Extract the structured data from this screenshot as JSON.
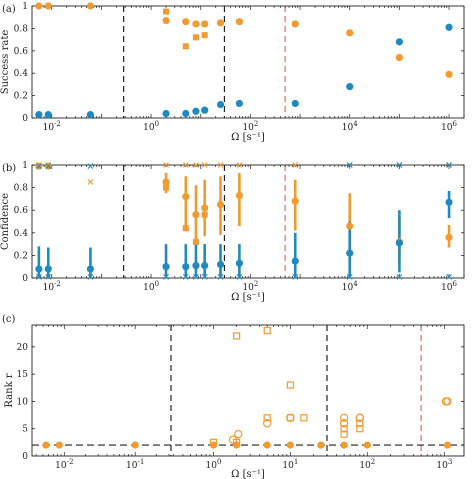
{
  "chart_data": [
    {
      "panel": "(a)",
      "type": "scatter",
      "xscale": "log",
      "xlim": [
        0.004,
        2000000
      ],
      "ylim": [
        0,
        1
      ],
      "ylabel": "Success rate",
      "xlabel": "Ω [s⁻¹]",
      "xticks": [
        {
          "v": 0.01,
          "b": "10",
          "e": "-2"
        },
        {
          "v": 1,
          "b": "10",
          "e": "0"
        },
        {
          "v": 100,
          "b": "10",
          "e": "2"
        },
        {
          "v": 10000,
          "b": "10",
          "e": "4"
        },
        {
          "v": 1000000,
          "b": "10",
          "e": "6"
        }
      ],
      "yticks": [
        "0",
        "0.2",
        "0.4",
        "0.6",
        "0.8",
        "1"
      ],
      "vlines": [
        {
          "x": 0.28,
          "color": "#222222"
        },
        {
          "x": 30,
          "color": "#222222"
        },
        {
          "x": 500,
          "color": "#e07060"
        }
      ],
      "series": [
        {
          "color": "#f39a2e",
          "marker": "circle",
          "x": [
            0.0055,
            0.0085,
            0.06,
            2,
            5,
            8,
            12,
            25,
            60,
            800,
            10000,
            100000,
            1000000
          ],
          "y": [
            1.0,
            1.0,
            1.0,
            0.87,
            0.86,
            0.84,
            0.84,
            0.85,
            0.86,
            0.84,
            0.76,
            0.54,
            0.39
          ]
        },
        {
          "color": "#f39a2e",
          "marker": "square",
          "x": [
            2,
            5,
            8,
            12
          ],
          "y": [
            0.95,
            0.64,
            0.72,
            0.74
          ]
        },
        {
          "color": "#1f8ac0",
          "marker": "circle",
          "x": [
            0.0055,
            0.0085,
            0.06,
            2,
            5,
            8,
            12,
            25,
            60,
            800,
            10000,
            100000,
            1000000
          ],
          "y": [
            0.03,
            0.03,
            0.03,
            0.04,
            0.04,
            0.06,
            0.07,
            0.12,
            0.13,
            0.13,
            0.28,
            0.68,
            0.81
          ]
        }
      ]
    },
    {
      "panel": "(b)",
      "type": "scatter",
      "xscale": "log",
      "xlim": [
        0.004,
        2000000
      ],
      "ylim": [
        0,
        1
      ],
      "ylabel": "Confidence",
      "xlabel": "Ω [s⁻¹]",
      "xticks": [
        {
          "v": 0.01,
          "b": "10",
          "e": "-2"
        },
        {
          "v": 1,
          "b": "10",
          "e": "0"
        },
        {
          "v": 100,
          "b": "10",
          "e": "2"
        },
        {
          "v": 10000,
          "b": "10",
          "e": "4"
        },
        {
          "v": 1000000,
          "b": "10",
          "e": "6"
        }
      ],
      "yticks": [
        "0",
        "0.2",
        "0.4",
        "0.6",
        "0.8",
        "1"
      ],
      "vlines": [
        {
          "x": 0.28,
          "color": "#222222"
        },
        {
          "x": 30,
          "color": "#222222"
        },
        {
          "x": 500,
          "color": "#e07060"
        }
      ],
      "series": [
        {
          "color": "#f39a2e",
          "marker": "circle_errorbar",
          "x": [
            0.0055,
            0.0085,
            2,
            5,
            8,
            12,
            25,
            60,
            800,
            10000,
            100000,
            1000000
          ],
          "y": [
            0.99,
            0.99,
            0.85,
            0.72,
            0.56,
            0.62,
            0.65,
            0.73,
            0.68,
            0.46,
            0.32,
            0.36
          ],
          "lo": [
            0.97,
            0.97,
            0.75,
            0.44,
            0.28,
            0.37,
            0.38,
            0.46,
            0.42,
            0.15,
            0.13,
            0.27
          ],
          "hi": [
            1.0,
            1.0,
            0.93,
            0.9,
            0.82,
            0.87,
            0.9,
            0.93,
            0.87,
            0.75,
            0.55,
            0.47
          ]
        },
        {
          "color": "#f39a2e",
          "marker": "square",
          "x": [
            2,
            5,
            8,
            12
          ],
          "y": [
            0.8,
            0.44,
            0.32,
            0.56
          ]
        },
        {
          "color": "#f39a2e",
          "marker": "cross",
          "x": [
            0.0055,
            0.0085,
            0.06,
            2,
            5,
            8,
            12,
            25,
            60,
            800,
            10000,
            100000,
            1000000
          ],
          "y": [
            1.0,
            1.0,
            0.85,
            1.0,
            1.0,
            1.0,
            1.0,
            1.0,
            1.0,
            1.0,
            1.0,
            1.0,
            1.0
          ]
        },
        {
          "color": "#1f8ac0",
          "marker": "circle_errorbar",
          "x": [
            0.0055,
            0.0085,
            0.06,
            2,
            5,
            8,
            12,
            25,
            60,
            800,
            10000,
            100000,
            1000000
          ],
          "y": [
            0.08,
            0.08,
            0.08,
            0.1,
            0.1,
            0.11,
            0.11,
            0.12,
            0.13,
            0.15,
            0.22,
            0.31,
            0.67
          ],
          "lo": [
            0.0,
            0.0,
            0.0,
            0.0,
            0.0,
            0.0,
            0.0,
            0.0,
            0.0,
            0.0,
            0.0,
            0.05,
            0.53
          ],
          "hi": [
            0.28,
            0.27,
            0.27,
            0.3,
            0.3,
            0.3,
            0.3,
            0.3,
            0.3,
            0.4,
            0.5,
            0.6,
            0.77
          ]
        },
        {
          "color": "#1f8ac0",
          "marker": "cross",
          "x": [
            0.0055,
            0.0085,
            0.06,
            2,
            5,
            8,
            12,
            25,
            60,
            800,
            10000,
            100000,
            1000000
          ],
          "y": [
            0.01,
            0.01,
            0.01,
            0.01,
            0.01,
            0.01,
            0.01,
            0.01,
            0.01,
            0.01,
            0.01,
            0.01,
            0.01
          ]
        },
        {
          "color": "#1f8ac0",
          "marker": "cross",
          "x": [
            0.0055,
            0.0085,
            0.06,
            10000,
            100000,
            1000000
          ],
          "y": [
            0.99,
            0.99,
            0.99,
            1.0,
            1.0,
            1.0
          ]
        }
      ]
    },
    {
      "panel": "(c)",
      "type": "scatter",
      "xscale": "log",
      "subaxes": [
        {
          "xlim": [
            0.0035,
            0.32
          ],
          "xticks": [
            {
              "v": 0.01,
              "b": "10",
              "e": "-2"
            },
            {
              "v": 0.1,
              "b": "10",
              "e": "-1"
            }
          ]
        },
        {
          "xlim": [
            0.28,
            30
          ],
          "xticks": [
            {
              "v": 1,
              "b": "10",
              "e": "0"
            },
            {
              "v": 10,
              "b": "10",
              "e": "1"
            }
          ]
        },
        {
          "xlim": [
            30,
            1800
          ],
          "xticks": [
            {
              "v": 100,
              "b": "10",
              "e": "2"
            },
            {
              "v": 1000,
              "b": "10",
              "e": "3"
            }
          ]
        }
      ],
      "ylim": [
        0,
        24
      ],
      "ylabel": "Rank r",
      "xlabel": "Ω [s⁻¹]",
      "yticks": [
        "0",
        "5",
        "10",
        "15",
        "20"
      ],
      "hline": 2,
      "vline_red": 500,
      "series": [
        {
          "color": "#f39a2e",
          "marker": "circle_filled",
          "x": [
            0.0055,
            0.0085,
            0.1,
            1,
            2,
            5,
            10,
            25,
            50,
            100,
            1100
          ],
          "y": [
            2,
            2,
            2,
            2,
            2,
            2,
            2,
            2,
            2,
            2,
            2
          ]
        },
        {
          "color": "#f39a2e",
          "marker": "circle_open",
          "x": [
            1.8,
            2.1,
            5,
            10,
            50,
            80,
            1050,
            1100
          ],
          "y": [
            3,
            4,
            6,
            7,
            6,
            7,
            10,
            10
          ]
        },
        {
          "color": "#f39a2e",
          "marker": "circle_open",
          "x": [
            50,
            80
          ],
          "y": [
            7,
            7
          ]
        },
        {
          "color": "#f39a2e",
          "marker": "square_open",
          "x": [
            2,
            5,
            10
          ],
          "y": [
            22,
            23,
            13
          ]
        },
        {
          "color": "#f39a2e",
          "marker": "square_open",
          "x": [
            1,
            2,
            5,
            10,
            15,
            50,
            80
          ],
          "y": [
            2.5,
            2.5,
            7,
            7,
            7,
            4,
            6
          ]
        },
        {
          "color": "#f39a2e",
          "marker": "square_open",
          "x": [
            50,
            80
          ],
          "y": [
            5,
            5
          ]
        }
      ]
    }
  ]
}
